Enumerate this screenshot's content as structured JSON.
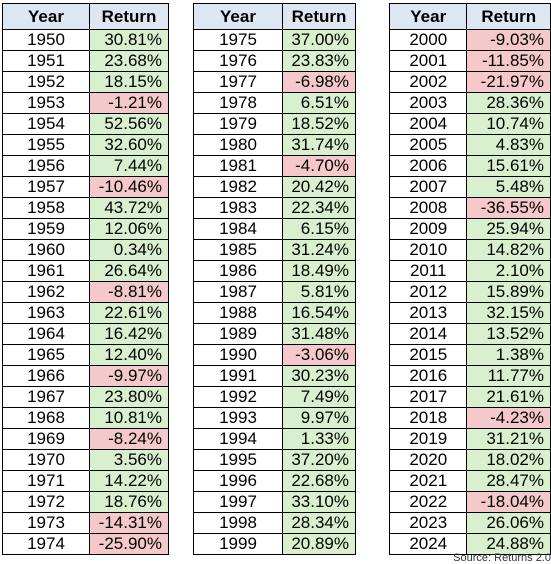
{
  "chart_data": {
    "type": "table",
    "columns": [
      "Year",
      "Return"
    ],
    "rows": [
      [
        "1950",
        "30.81%"
      ],
      [
        "1951",
        "23.68%"
      ],
      [
        "1952",
        "18.15%"
      ],
      [
        "1953",
        "-1.21%"
      ],
      [
        "1954",
        "52.56%"
      ],
      [
        "1955",
        "32.60%"
      ],
      [
        "1956",
        "7.44%"
      ],
      [
        "1957",
        "-10.46%"
      ],
      [
        "1958",
        "43.72%"
      ],
      [
        "1959",
        "12.06%"
      ],
      [
        "1960",
        "0.34%"
      ],
      [
        "1961",
        "26.64%"
      ],
      [
        "1962",
        "-8.81%"
      ],
      [
        "1963",
        "22.61%"
      ],
      [
        "1964",
        "16.42%"
      ],
      [
        "1965",
        "12.40%"
      ],
      [
        "1966",
        "-9.97%"
      ],
      [
        "1967",
        "23.80%"
      ],
      [
        "1968",
        "10.81%"
      ],
      [
        "1969",
        "-8.24%"
      ],
      [
        "1970",
        "3.56%"
      ],
      [
        "1971",
        "14.22%"
      ],
      [
        "1972",
        "18.76%"
      ],
      [
        "1973",
        "-14.31%"
      ],
      [
        "1974",
        "-25.90%"
      ],
      [
        "1975",
        "37.00%"
      ],
      [
        "1976",
        "23.83%"
      ],
      [
        "1977",
        "-6.98%"
      ],
      [
        "1978",
        "6.51%"
      ],
      [
        "1979",
        "18.52%"
      ],
      [
        "1980",
        "31.74%"
      ],
      [
        "1981",
        "-4.70%"
      ],
      [
        "1982",
        "20.42%"
      ],
      [
        "1983",
        "22.34%"
      ],
      [
        "1984",
        "6.15%"
      ],
      [
        "1985",
        "31.24%"
      ],
      [
        "1986",
        "18.49%"
      ],
      [
        "1987",
        "5.81%"
      ],
      [
        "1988",
        "16.54%"
      ],
      [
        "1989",
        "31.48%"
      ],
      [
        "1990",
        "-3.06%"
      ],
      [
        "1991",
        "30.23%"
      ],
      [
        "1992",
        "7.49%"
      ],
      [
        "1993",
        "9.97%"
      ],
      [
        "1994",
        "1.33%"
      ],
      [
        "1995",
        "37.20%"
      ],
      [
        "1996",
        "22.68%"
      ],
      [
        "1997",
        "33.10%"
      ],
      [
        "1998",
        "28.34%"
      ],
      [
        "1999",
        "20.89%"
      ],
      [
        "2000",
        "-9.03%"
      ],
      [
        "2001",
        "-11.85%"
      ],
      [
        "2002",
        "-21.97%"
      ],
      [
        "2003",
        "28.36%"
      ],
      [
        "2004",
        "10.74%"
      ],
      [
        "2005",
        "4.83%"
      ],
      [
        "2006",
        "15.61%"
      ],
      [
        "2007",
        "5.48%"
      ],
      [
        "2008",
        "-36.55%"
      ],
      [
        "2009",
        "25.94%"
      ],
      [
        "2010",
        "14.82%"
      ],
      [
        "2011",
        "2.10%"
      ],
      [
        "2012",
        "15.89%"
      ],
      [
        "2013",
        "32.15%"
      ],
      [
        "2014",
        "13.52%"
      ],
      [
        "2015",
        "1.38%"
      ],
      [
        "2016",
        "11.77%"
      ],
      [
        "2017",
        "21.61%"
      ],
      [
        "2018",
        "-4.23%"
      ],
      [
        "2019",
        "31.21%"
      ],
      [
        "2020",
        "18.02%"
      ],
      [
        "2021",
        "28.47%"
      ],
      [
        "2022",
        "-18.04%"
      ],
      [
        "2023",
        "26.06%"
      ],
      [
        "2024",
        "24.88%"
      ]
    ],
    "colors": {
      "header_bg": "#dde7f1",
      "positive_bg": "#d9f0cf",
      "negative_bg": "#f5c9cb",
      "border": "#000000"
    },
    "source": "Source: Returns 2.0"
  }
}
